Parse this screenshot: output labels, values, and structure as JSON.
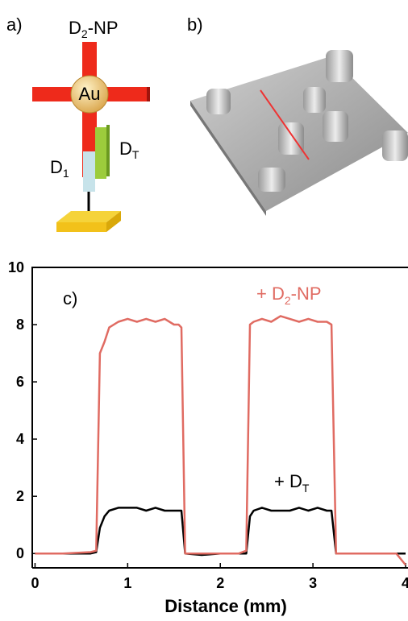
{
  "panel_a": {
    "label": "a)",
    "np_name": [
      "D",
      "2",
      "-NP"
    ],
    "core": "Au",
    "target": [
      "D",
      "T"
    ],
    "probe": [
      "D",
      "1"
    ]
  },
  "panel_b": {
    "label": "b)"
  },
  "chart_data": {
    "type": "line",
    "panel_label": "c)",
    "x_label": "Distance (mm)",
    "x": [
      0,
      0.1,
      0.3,
      0.6,
      0.66,
      0.7,
      0.75,
      0.8,
      0.9,
      1.0,
      1.1,
      1.2,
      1.3,
      1.4,
      1.5,
      1.55,
      1.58,
      1.62,
      1.8,
      2.0,
      2.2,
      2.28,
      2.32,
      2.36,
      2.45,
      2.55,
      2.65,
      2.75,
      2.85,
      2.95,
      3.05,
      3.15,
      3.2,
      3.25,
      3.4,
      3.6,
      3.8,
      3.9,
      4.0
    ],
    "series": [
      {
        "name": [
          "+ D",
          "2",
          "-NP"
        ],
        "color": "#e06b62",
        "values": [
          0,
          0,
          0,
          0.05,
          0.1,
          7,
          7.4,
          7.9,
          8.1,
          8.2,
          8.1,
          8.2,
          8.1,
          8.2,
          8.0,
          8.0,
          7.9,
          0,
          0,
          0,
          0,
          0.1,
          8.0,
          8.1,
          8.2,
          8.1,
          8.3,
          8.2,
          8.1,
          8.2,
          8.1,
          8.1,
          8.0,
          0,
          0,
          0,
          0,
          0,
          -0.4
        ]
      },
      {
        "name": [
          "+ D",
          "T"
        ],
        "color": "#000000",
        "values": [
          0,
          0,
          0,
          0,
          0.05,
          0.9,
          1.3,
          1.5,
          1.6,
          1.6,
          1.6,
          1.5,
          1.6,
          1.5,
          1.5,
          1.5,
          1.5,
          0,
          -0.05,
          0,
          0,
          0,
          1.3,
          1.5,
          1.6,
          1.5,
          1.5,
          1.5,
          1.6,
          1.5,
          1.6,
          1.5,
          1.5,
          0,
          0,
          0,
          0,
          0,
          0
        ]
      }
    ],
    "xlim": [
      -0.03,
      4
    ],
    "ylim": [
      -0.5,
      10
    ],
    "xticks": [
      0,
      1,
      2,
      3,
      4
    ],
    "yticks": [
      0,
      2,
      4,
      6,
      8,
      10
    ],
    "grid": false
  }
}
